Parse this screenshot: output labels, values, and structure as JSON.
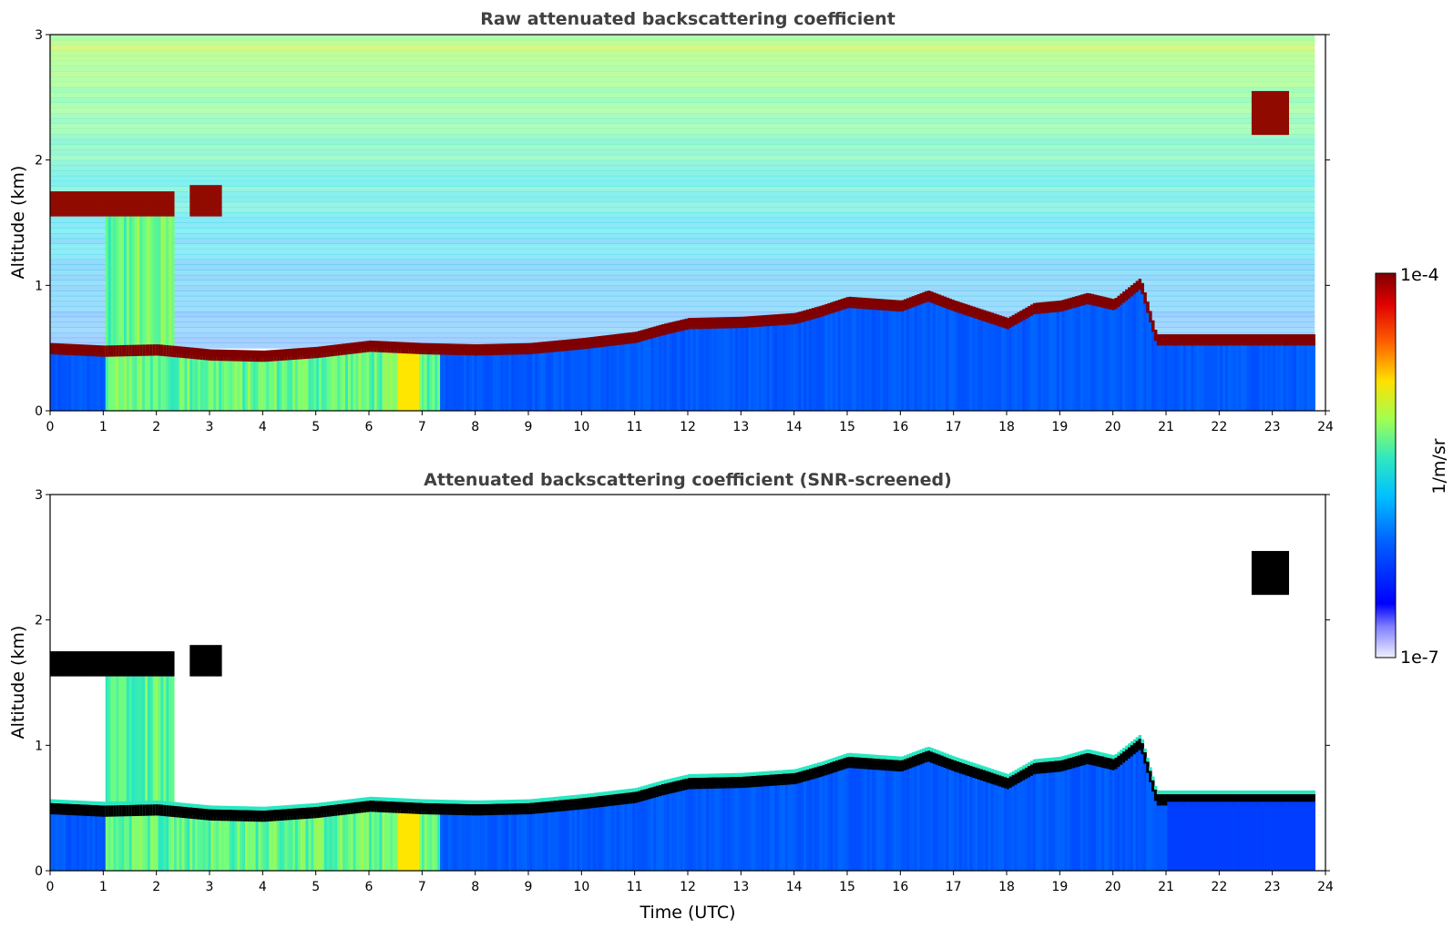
{
  "chart_data": [
    {
      "type": "heatmap",
      "title": "Raw attenuated backscattering coefficient",
      "xlabel": "",
      "ylabel": "Altitude (km)",
      "xlim": [
        0,
        24
      ],
      "ylim": [
        0,
        3
      ],
      "xticks": [
        "0",
        "1",
        "2",
        "3",
        "4",
        "5",
        "6",
        "7",
        "8",
        "9",
        "10",
        "11",
        "12",
        "13",
        "14",
        "15",
        "16",
        "17",
        "18",
        "19",
        "20",
        "21",
        "22",
        "23",
        "24"
      ],
      "yticks": [
        "0",
        "1",
        "2",
        "3"
      ],
      "screened": false,
      "data_end_hour": 23.8,
      "boundary_layer_top_km": [
        [
          0,
          0.48
        ],
        [
          1,
          0.46
        ],
        [
          2,
          0.47
        ],
        [
          3,
          0.43
        ],
        [
          4,
          0.42
        ],
        [
          5,
          0.45
        ],
        [
          6,
          0.5
        ],
        [
          7,
          0.48
        ],
        [
          8,
          0.47
        ],
        [
          9,
          0.48
        ],
        [
          10,
          0.52
        ],
        [
          11,
          0.57
        ],
        [
          11.5,
          0.63
        ],
        [
          12,
          0.68
        ],
        [
          13,
          0.69
        ],
        [
          14,
          0.72
        ],
        [
          14.5,
          0.78
        ],
        [
          15,
          0.85
        ],
        [
          16,
          0.82
        ],
        [
          16.5,
          0.9
        ],
        [
          17,
          0.82
        ],
        [
          17.5,
          0.75
        ],
        [
          18,
          0.68
        ],
        [
          18.5,
          0.8
        ],
        [
          19,
          0.82
        ],
        [
          19.5,
          0.88
        ],
        [
          20,
          0.83
        ],
        [
          20.5,
          1.0
        ],
        [
          20.8,
          0.55
        ]
      ],
      "cloud_layers": [
        {
          "from_hour": 0,
          "to_hour": 2.3,
          "top_km": 1.75,
          "base_km": 1.55
        },
        {
          "from_hour": 2.6,
          "to_hour": 3.2,
          "top_km": 1.8,
          "base_km": 1.55
        },
        {
          "from_hour": 22.6,
          "to_hour": 23.3,
          "top_km": 2.55,
          "base_km": 2.2
        }
      ]
    },
    {
      "type": "heatmap",
      "title": "Attenuated backscattering coefficient (SNR-screened)",
      "xlabel": "Time (UTC)",
      "ylabel": "Altitude (km)",
      "xlim": [
        0,
        24
      ],
      "ylim": [
        0,
        3
      ],
      "xticks": [
        "0",
        "1",
        "2",
        "3",
        "4",
        "5",
        "6",
        "7",
        "8",
        "9",
        "10",
        "11",
        "12",
        "13",
        "14",
        "15",
        "16",
        "17",
        "18",
        "19",
        "20",
        "21",
        "22",
        "23",
        "24"
      ],
      "yticks": [
        "0",
        "1",
        "2",
        "3"
      ],
      "screened": true,
      "data_end_hour": 23.8
    }
  ],
  "colorbar": {
    "label": "1/m/sr",
    "max_label": "1e-4",
    "min_label": "1e-7",
    "scale": "log",
    "range": [
      1e-07,
      0.0001
    ],
    "colormap": "jet",
    "colors": [
      "#ffffff",
      "#0000ff",
      "#00a0ff",
      "#30e0c0",
      "#c0ff40",
      "#ffe000",
      "#ff5000",
      "#c00000",
      "#800000"
    ]
  }
}
